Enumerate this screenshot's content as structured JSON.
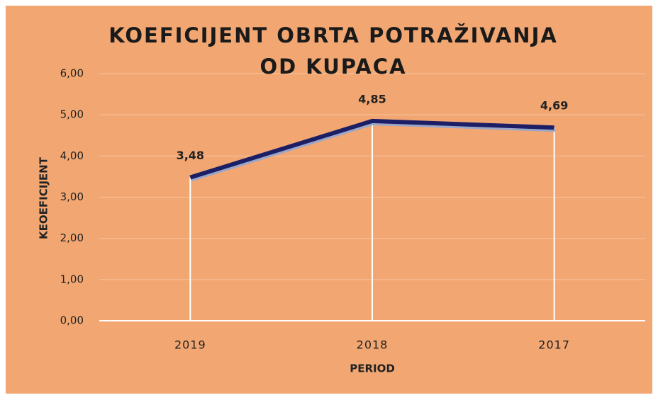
{
  "chart_data": {
    "type": "line",
    "title": "KOEFICIJENT OBRTA POTRAŽIVANJA OD KUPACA",
    "x_label": "PERIOD",
    "y_label": "KEOEFICIJENT",
    "categories": [
      "2019",
      "2018",
      "2017"
    ],
    "series": [
      {
        "name": "KOEFICIJENT",
        "color": "#1c1f66",
        "values": [
          3.48,
          4.85,
          4.69
        ],
        "value_labels": [
          "3,48",
          "4,85",
          "4,69"
        ]
      }
    ],
    "ylim": [
      0,
      6
    ],
    "yticks": [
      {
        "value": 0,
        "label": "0,00"
      },
      {
        "value": 1,
        "label": "1,00"
      },
      {
        "value": 2,
        "label": "2,00"
      },
      {
        "value": 3,
        "label": "3,00"
      },
      {
        "value": 4,
        "label": "4,00"
      },
      {
        "value": 5,
        "label": "5,00"
      },
      {
        "value": 6,
        "label": "6,00"
      }
    ],
    "grid": true
  }
}
